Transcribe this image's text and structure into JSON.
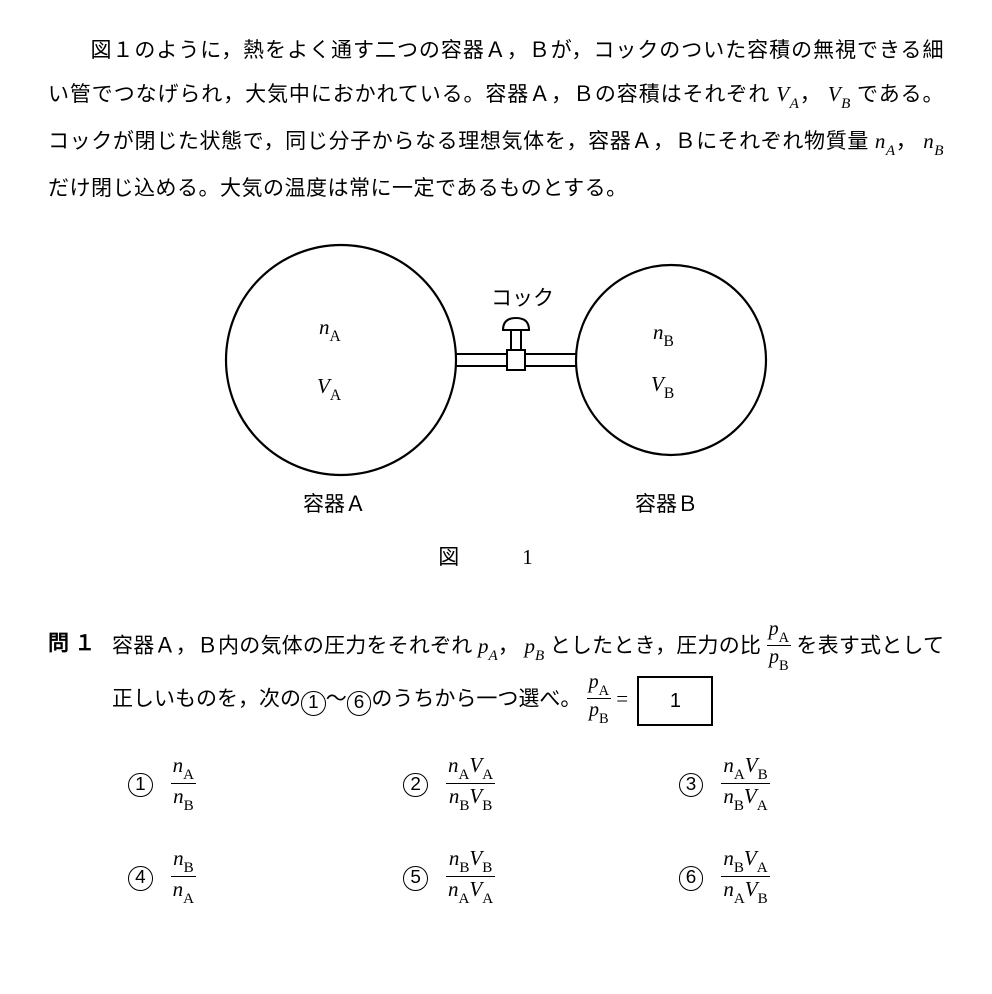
{
  "intro": {
    "line": "図１のように，熱をよく通す二つの容器Ａ，Ｂが，コックのついた容積の無視できる細い管でつなげられ，大気中におかれている。容器Ａ，Ｂの容積はそれぞれ",
    "after_vavb": "である。コックが閉じた状態で，同じ分子からなる理想気体を，容器Ａ，Ｂにそれぞれ物質量 ",
    "after_nanb": "だけ閉じ込める。大気の温度は常に一定であるものとする。",
    "V_A": "V",
    "V_A_sub": "A",
    "V_B": "V",
    "V_B_sub": "B",
    "n_A": "n",
    "n_A_sub": "A",
    "n_B": "n",
    "n_B_sub": "B"
  },
  "figure": {
    "nA": "n",
    "nA_sub": "A",
    "VA": "V",
    "VA_sub": "A",
    "nB": "n",
    "nB_sub": "B",
    "VB": "V",
    "VB_sub": "B",
    "cock": "コック",
    "labelA": "容器Ａ",
    "labelB": "容器Ｂ",
    "caption": "図　1"
  },
  "question": {
    "head": "問 １",
    "body1": "容器Ａ，Ｂ内の気体の圧力をそれぞれ ",
    "pA": "p",
    "pA_sub": "A",
    "pB": "p",
    "pB_sub": "B",
    "body2": " としたとき，圧力の比 ",
    "body3": " を表す式として正しいものを，次の",
    "range_from": "①",
    "range_to": "⑥",
    "body4": "のうちから一つ選べ。",
    "eq": " = ",
    "ans": "1",
    "frac_num": "p",
    "frac_num_sub": "A",
    "frac_den": "p",
    "frac_den_sub": "B"
  },
  "choices": [
    {
      "num": "n<sub>A</sub>",
      "den": "n<sub>B</sub>"
    },
    {
      "num": "n<sub>A</sub>V<sub>A</sub>",
      "den": "n<sub>B</sub>V<sub>B</sub>"
    },
    {
      "num": "n<sub>A</sub>V<sub>B</sub>",
      "den": "n<sub>B</sub>V<sub>A</sub>"
    },
    {
      "num": "n<sub>B</sub>",
      "den": "n<sub>A</sub>"
    },
    {
      "num": "n<sub>B</sub>V<sub>B</sub>",
      "den": "n<sub>A</sub>V<sub>A</sub>"
    },
    {
      "num": "n<sub>B</sub>V<sub>A</sub>",
      "den": "n<sub>A</sub>V<sub>B</sub>"
    }
  ],
  "choice_labels": [
    "1",
    "2",
    "3",
    "4",
    "5",
    "6"
  ],
  "style": {
    "stroke": "#000000",
    "stroke_width": 2
  }
}
